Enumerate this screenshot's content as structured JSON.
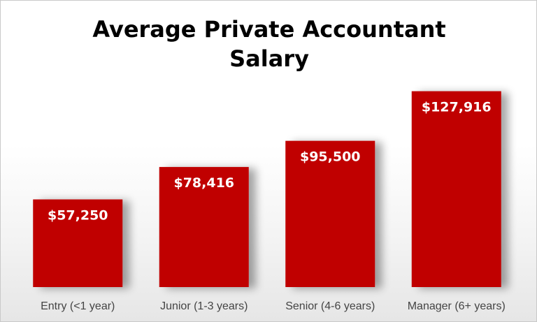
{
  "chart_data": {
    "type": "bar",
    "title": "Average Private Accountant\nSalary",
    "categories": [
      "Entry (<1 year)",
      "Junior (1-3 years)",
      "Senior (4-6 years)",
      "Manager (6+ years)"
    ],
    "values": [
      57250,
      78416,
      95500,
      127916
    ],
    "value_labels": [
      "$57,250",
      "$78,416",
      "$95,500",
      "$127,916"
    ],
    "xlabel": "",
    "ylabel": "",
    "ylim": [
      0,
      130000
    ],
    "grid": false,
    "legend": "none",
    "bar_color": "#C00000"
  }
}
